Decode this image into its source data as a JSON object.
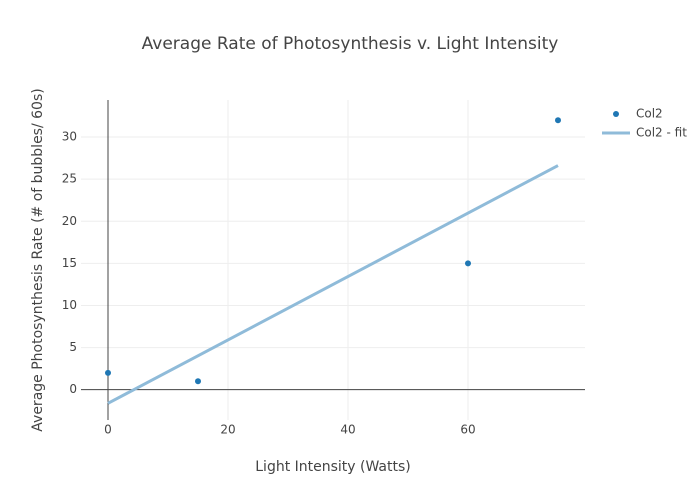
{
  "chart_data": {
    "type": "scatter",
    "title": "Average Rate of Photosynthesis v. Light Intensity",
    "x_label": "Light Intensity (Watts)",
    "y_label": "Average Photosynthesis Rate (# of bubbles/ 60s)",
    "series": [
      {
        "name": "Col2",
        "mode": "markers",
        "color": "#1f77b4",
        "x": [
          0,
          15,
          60,
          75
        ],
        "values": [
          2,
          1,
          15,
          32
        ]
      },
      {
        "name": "Col2 - fit",
        "mode": "lines",
        "color": "#8fbbd9",
        "x": [
          0,
          75
        ],
        "values": [
          -1.62,
          26.62
        ]
      }
    ],
    "xlim": [
      -4.5,
      79.5
    ],
    "ylim": [
      -3.6,
      34.4
    ],
    "xticks": [
      0,
      20,
      40,
      60
    ],
    "yticks": [
      0,
      5,
      10,
      15,
      20,
      25,
      30
    ],
    "grid": true,
    "legend": "top-right"
  }
}
